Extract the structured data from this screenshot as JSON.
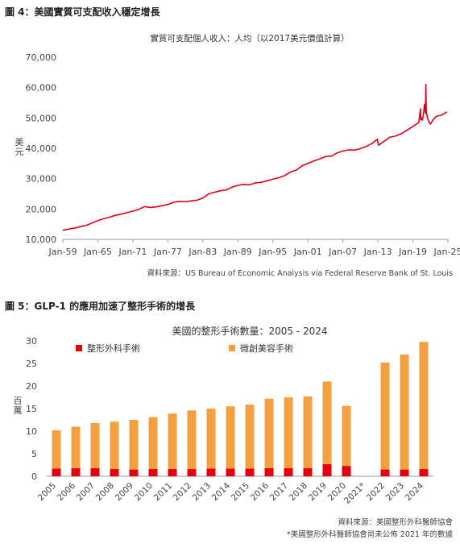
{
  "figure4": {
    "heading": "圖 4：美國實質可支配收入穩定增長",
    "source": "資料來源：US Bureau of Economic Analysis via Federal Reserve Bank of St. Louis"
  },
  "figure5": {
    "heading": "圖 5：GLP-1 的應用加速了整形手術的增長",
    "source_line1": "資料來源：美國整形外科醫師協會",
    "source_line2": "*美國整形外科醫師協會尚未公佈 2021 年的數據"
  },
  "chart_data": [
    {
      "type": "line",
      "title": "實質可支配個人收入：人均（以2017美元價值計算）",
      "ylabel": "美元",
      "xlabel": "",
      "ylim": [
        10000,
        70000
      ],
      "yticks": [
        "10,000",
        "20,000",
        "30,000",
        "40,000",
        "50,000",
        "60,000",
        "70,000"
      ],
      "ytick_values": [
        10000,
        20000,
        30000,
        40000,
        50000,
        60000,
        70000
      ],
      "xlim": [
        1959.0,
        2025.0
      ],
      "xticks": [
        "Jan-59",
        "Jan-65",
        "Jan-71",
        "Jan-77",
        "Jan-83",
        "Jan-89",
        "Jan-95",
        "Jan-01",
        "Jan-07",
        "Jan-13",
        "Jan-19",
        "Jan-25"
      ],
      "xtick_values": [
        1959,
        1965,
        1971,
        1977,
        1983,
        1989,
        1995,
        2001,
        2007,
        2013,
        2019,
        2025
      ],
      "grid": false,
      "color": "#e0001b",
      "series": [
        {
          "x": [
            1959.0,
            1960.0,
            1961.0,
            1962.0,
            1963.0,
            1964.0,
            1965.0,
            1966.0,
            1967.0,
            1968.0,
            1969.0,
            1970.0,
            1971.0,
            1972.0,
            1973.0,
            1974.0,
            1975.0,
            1976.0,
            1977.0,
            1978.0,
            1979.0,
            1980.0,
            1981.0,
            1982.0,
            1983.0,
            1984.0,
            1985.0,
            1986.0,
            1987.0,
            1988.0,
            1989.0,
            1990.0,
            1991.0,
            1992.0,
            1993.0,
            1994.0,
            1995.0,
            1996.0,
            1997.0,
            1998.0,
            1999.0,
            2000.0,
            2001.0,
            2002.0,
            2003.0,
            2004.0,
            2005.0,
            2006.0,
            2007.0,
            2008.0,
            2009.0,
            2010.0,
            2011.0,
            2012.0,
            2012.9,
            2013.1,
            2014.0,
            2015.0,
            2016.0,
            2017.0,
            2018.0,
            2019.0,
            2020.0,
            2020.3,
            2020.35,
            2020.45,
            2020.6,
            2020.75,
            2021.0,
            2021.15,
            2021.22,
            2021.3,
            2021.5,
            2021.8,
            2022.0,
            2022.5,
            2023.0,
            2024.0,
            2024.8
          ],
          "y": [
            13000,
            13400,
            13700,
            14200,
            14600,
            15400,
            16200,
            16800,
            17300,
            17900,
            18300,
            18800,
            19300,
            19900,
            20800,
            20500,
            20700,
            21100,
            21500,
            22200,
            22500,
            22400,
            22700,
            22900,
            23600,
            25000,
            25500,
            26000,
            26300,
            27200,
            27800,
            28100,
            28000,
            28600,
            28800,
            29300,
            29800,
            30300,
            31000,
            32200,
            32800,
            34200,
            35000,
            35800,
            36500,
            37300,
            37400,
            38500,
            39100,
            39500,
            39400,
            39900,
            40600,
            41600,
            43000,
            41000,
            42200,
            43600,
            44000,
            44800,
            46000,
            47200,
            48500,
            53000,
            49500,
            50000,
            49200,
            50500,
            54500,
            51500,
            61000,
            52000,
            50000,
            48500,
            48000,
            49500,
            50500,
            51000,
            52000
          ]
        }
      ]
    },
    {
      "type": "bar",
      "title": "美國的整形手術數量：2005 - 2024",
      "ylabel": "百萬",
      "xlabel": "",
      "ylim": [
        0,
        30
      ],
      "yticks": [
        "0",
        "5",
        "10",
        "15",
        "20",
        "25",
        "30"
      ],
      "ytick_values": [
        0,
        5,
        10,
        15,
        20,
        25,
        30
      ],
      "stacked": true,
      "grid": false,
      "legend_position": "top",
      "categories": [
        "2005",
        "2006",
        "2007",
        "2008",
        "2009",
        "2010",
        "2011",
        "2012",
        "2013",
        "2014",
        "2015",
        "2016",
        "2017",
        "2018",
        "2019",
        "2020",
        "2021*",
        "2022",
        "2023",
        "2024"
      ],
      "series": [
        {
          "name": "整形外科手術",
          "color": "#e3000f",
          "values": [
            1.7,
            1.8,
            1.8,
            1.6,
            1.5,
            1.6,
            1.6,
            1.6,
            1.7,
            1.7,
            1.7,
            1.8,
            1.8,
            1.8,
            2.7,
            2.3,
            null,
            1.5,
            1.5,
            1.6
          ]
        },
        {
          "name": "微創美容手術",
          "color": "#f5a040",
          "values": [
            8.5,
            9.2,
            10.0,
            10.5,
            11.0,
            11.5,
            12.3,
            13.0,
            13.3,
            13.8,
            14.2,
            15.4,
            15.7,
            15.9,
            18.3,
            13.3,
            null,
            23.7,
            25.5,
            28.2
          ]
        }
      ]
    }
  ]
}
